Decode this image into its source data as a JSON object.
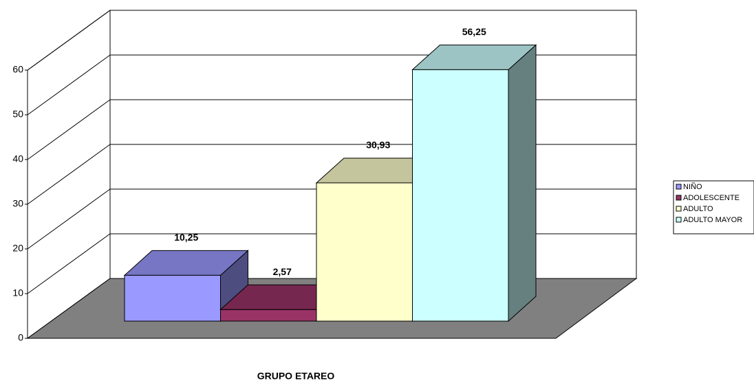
{
  "chart_data": {
    "type": "bar3d",
    "x_label": "GRUPO ETAREO",
    "categories": [
      "NIÑO",
      "ADOLESCENTE",
      "ADULTO",
      "ADULTO MAYOR"
    ],
    "values": [
      10.25,
      2.57,
      30.93,
      56.25
    ],
    "value_labels": [
      "10,25",
      "2,57",
      "30,93",
      "56,25"
    ],
    "colors": [
      "#9999ff",
      "#993366",
      "#ffffcc",
      "#ccffff"
    ],
    "ylim": [
      0,
      60
    ],
    "yticks": [
      0,
      10,
      20,
      30,
      40,
      50,
      60
    ],
    "grid": true,
    "legend": "right"
  }
}
